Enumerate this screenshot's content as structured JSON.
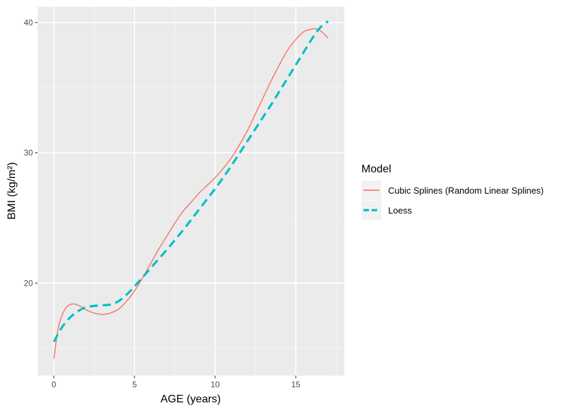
{
  "chart_data": {
    "type": "line",
    "xlabel": "AGE (years)",
    "ylabel": "BMI (kg/m²)",
    "xlim": [
      -1,
      18
    ],
    "ylim": [
      12.9,
      41.2
    ],
    "x_ticks": [
      0,
      5,
      10,
      15
    ],
    "y_ticks": [
      20,
      30,
      40
    ],
    "grid": true,
    "legend": {
      "title": "Model",
      "placement": "right"
    },
    "series": [
      {
        "name": "Cubic Splines (Random Linear Splines)",
        "color": "#F8766D",
        "line_style": "solid",
        "x": [
          0,
          0.25,
          0.5,
          0.75,
          1,
          1.25,
          1.5,
          1.75,
          2,
          2.5,
          3,
          3.5,
          4,
          4.5,
          5,
          5.5,
          6,
          6.5,
          7,
          7.5,
          8,
          8.5,
          9,
          9.5,
          10,
          10.5,
          11,
          11.5,
          12,
          12.5,
          13,
          13.5,
          14,
          14.5,
          15,
          15.5,
          16,
          16.3,
          16.6,
          17
        ],
        "y": [
          14.2,
          16.4,
          17.5,
          18.1,
          18.35,
          18.4,
          18.3,
          18.15,
          17.95,
          17.7,
          17.6,
          17.7,
          18.0,
          18.6,
          19.4,
          20.4,
          21.5,
          22.6,
          23.6,
          24.6,
          25.5,
          26.2,
          26.9,
          27.5,
          28.1,
          28.8,
          29.6,
          30.6,
          31.7,
          33.0,
          34.3,
          35.6,
          36.8,
          37.9,
          38.7,
          39.3,
          39.5,
          39.5,
          39.3,
          38.8
        ]
      },
      {
        "name": "Loess",
        "color": "#00BFC4",
        "line_style": "dashed",
        "x": [
          0,
          0.5,
          1,
          1.5,
          2,
          2.5,
          3,
          3.5,
          4,
          4.5,
          5,
          5.5,
          6,
          6.5,
          7,
          7.5,
          8,
          8.5,
          9,
          9.5,
          10,
          10.5,
          11,
          11.5,
          12,
          12.5,
          13,
          13.5,
          14,
          14.5,
          15,
          15.5,
          16,
          16.5,
          17
        ],
        "y": [
          15.5,
          16.6,
          17.35,
          17.85,
          18.15,
          18.25,
          18.3,
          18.35,
          18.6,
          19.1,
          19.75,
          20.45,
          21.15,
          21.85,
          22.55,
          23.3,
          24.05,
          24.85,
          25.65,
          26.45,
          27.25,
          28.1,
          29.0,
          29.95,
          30.9,
          31.85,
          32.8,
          33.75,
          34.75,
          35.75,
          36.75,
          37.75,
          38.75,
          39.6,
          40.1
        ]
      }
    ]
  }
}
